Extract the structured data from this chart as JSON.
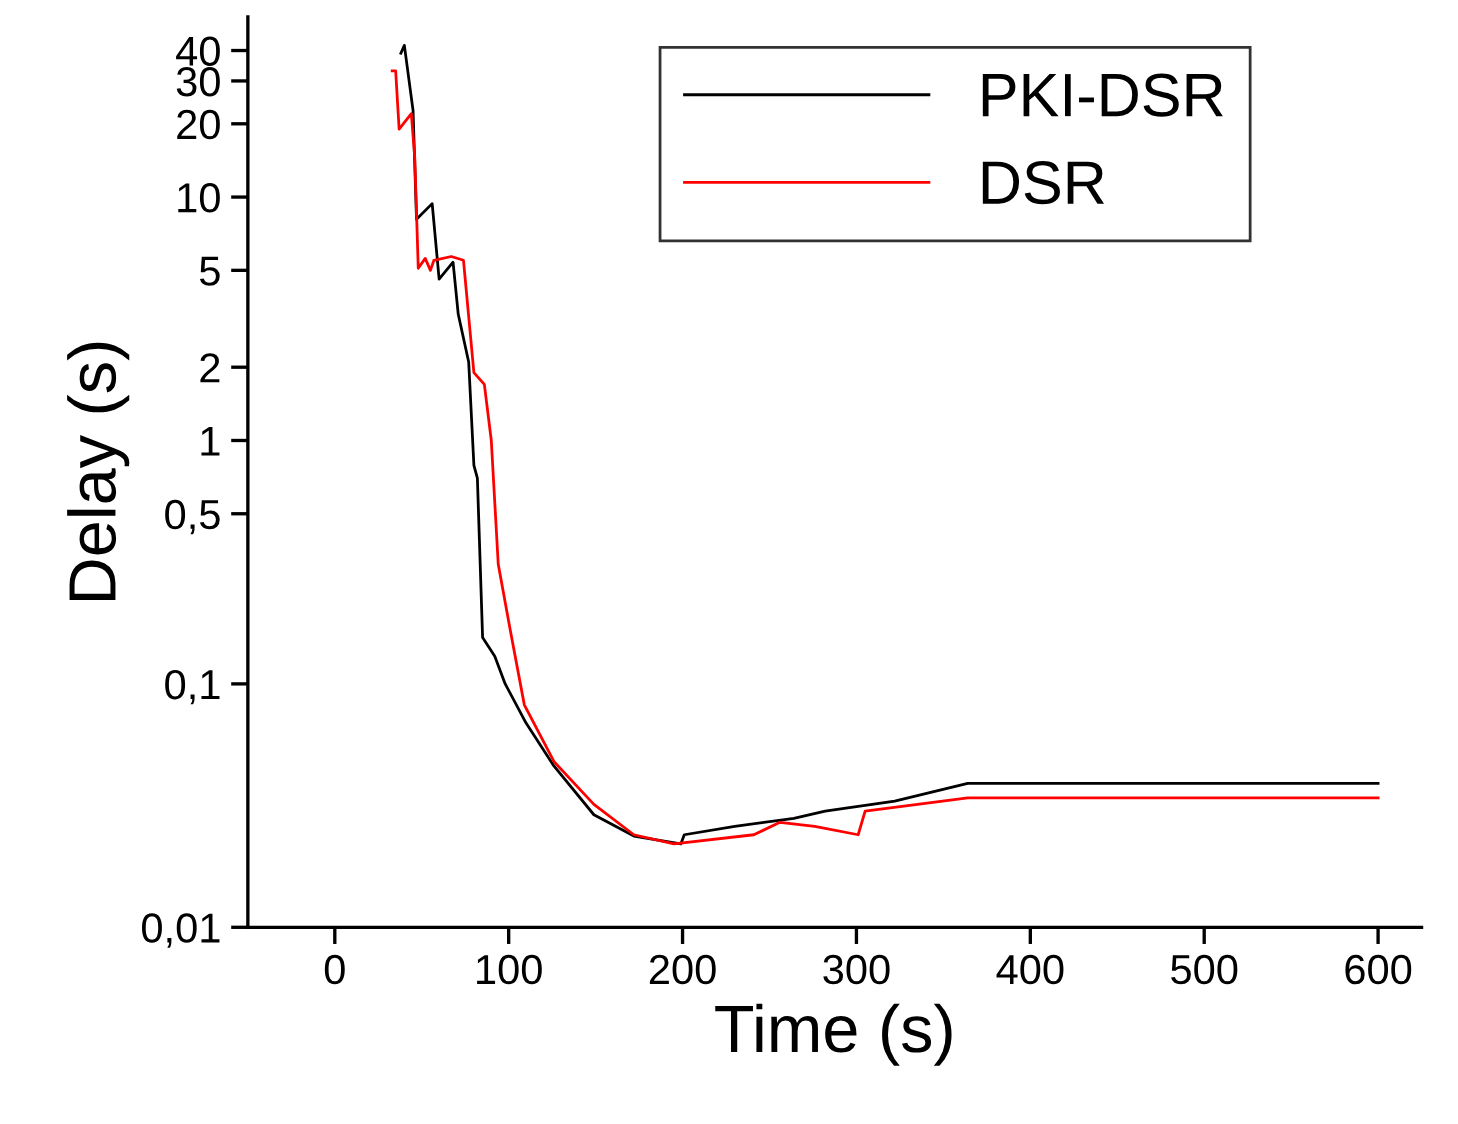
{
  "chart_data": {
    "type": "line",
    "xlabel": "Time (s)",
    "ylabel": "Delay (s)",
    "log": "y",
    "xlim": [
      -50,
      625
    ],
    "xticks": [
      0,
      100,
      200,
      300,
      400,
      500,
      600
    ],
    "ylim": [
      0.01,
      55
    ],
    "yticks": [
      {
        "value": 0.01,
        "label": "0,01"
      },
      {
        "value": 0.1,
        "label": "0,1"
      },
      {
        "value": 0.5,
        "label": "0,5"
      },
      1,
      2,
      5,
      10,
      20,
      30,
      40
    ],
    "grid": false,
    "legend": "top right",
    "line_style": "solid",
    "marker": "none",
    "series": [
      {
        "name": "PKI-DSR",
        "color": "#000000",
        "x": [
          38,
          40,
          45,
          47,
          56,
          60,
          68,
          71,
          77,
          80,
          82,
          85,
          92,
          98,
          110,
          126,
          149,
          172,
          199,
          201,
          230,
          264,
          282,
          322,
          364,
          600
        ],
        "values": [
          39,
          42,
          22.7,
          8.1,
          9.4,
          4.6,
          5.4,
          3.3,
          2.1,
          0.79,
          0.7,
          0.155,
          0.13,
          0.1,
          0.069,
          0.046,
          0.029,
          0.0237,
          0.022,
          0.024,
          0.026,
          0.028,
          0.03,
          0.033,
          0.039,
          0.039
        ]
      },
      {
        "name": "DSR",
        "color": "#ff0000",
        "x": [
          33,
          35,
          37,
          44,
          46,
          48,
          52,
          55,
          57,
          67,
          74,
          80,
          86,
          90,
          94,
          101,
          109,
          126,
          149,
          172,
          195,
          241,
          256,
          276,
          301,
          305,
          364,
          600
        ],
        "values": [
          33,
          33,
          19,
          22,
          14.5,
          5.1,
          5.6,
          5,
          5.5,
          5.7,
          5.5,
          1.9,
          1.7,
          1,
          0.31,
          0.165,
          0.082,
          0.048,
          0.032,
          0.024,
          0.022,
          0.024,
          0.027,
          0.026,
          0.024,
          0.03,
          0.034,
          0.034
        ]
      }
    ]
  }
}
